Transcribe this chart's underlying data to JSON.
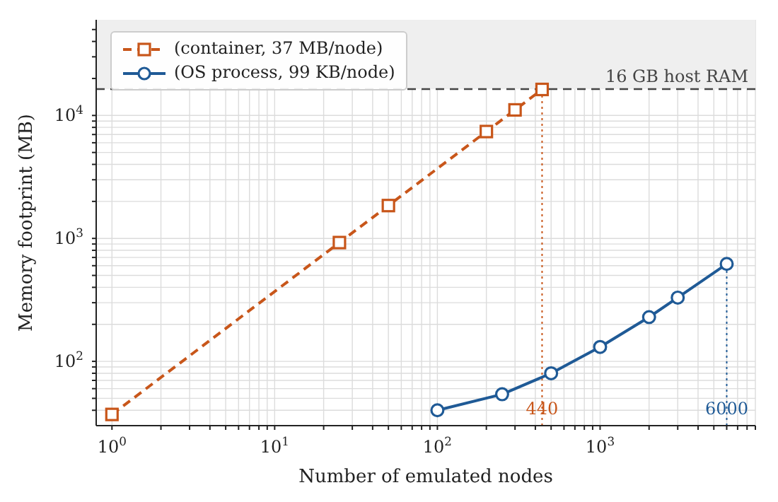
{
  "chart_data": {
    "type": "line",
    "xlabel": "Number of emulated nodes",
    "ylabel": "Memory footprint (MB)",
    "log": "xy",
    "grid": true,
    "legend": "top left",
    "xlim": [
      0.8,
      9000
    ],
    "ylim": [
      30,
      60000
    ],
    "xticks": [
      {
        "value": 1,
        "label": "10$^{0}$"
      },
      {
        "value": 2,
        "label": null
      },
      {
        "value": 3,
        "label": null
      },
      {
        "value": 4,
        "label": null
      },
      {
        "value": 5,
        "label": null
      },
      {
        "value": 6,
        "label": null
      },
      {
        "value": 7,
        "label": null
      },
      {
        "value": 8,
        "label": null
      },
      {
        "value": 9,
        "label": null
      },
      {
        "value": 10,
        "label": "10$^{1}$"
      },
      {
        "value": 20,
        "label": null
      },
      {
        "value": 30,
        "label": null
      },
      {
        "value": 40,
        "label": null
      },
      {
        "value": 50,
        "label": null
      },
      {
        "value": 60,
        "label": null
      },
      {
        "value": 70,
        "label": null
      },
      {
        "value": 80,
        "label": null
      },
      {
        "value": 90,
        "label": null
      },
      {
        "value": 100,
        "label": "10$^{2}$"
      },
      {
        "value": 200,
        "label": null
      },
      {
        "value": 300,
        "label": null
      },
      {
        "value": 400,
        "label": null
      },
      {
        "value": 500,
        "label": null
      },
      {
        "value": 600,
        "label": null
      },
      {
        "value": 700,
        "label": null
      },
      {
        "value": 800,
        "label": null
      },
      {
        "value": 900,
        "label": null
      },
      {
        "value": 1000,
        "label": "10$^{3}$"
      },
      {
        "value": 2000,
        "label": null
      },
      {
        "value": 3000,
        "label": null
      },
      {
        "value": 4000,
        "label": null
      },
      {
        "value": 5000,
        "label": null
      },
      {
        "value": 6000,
        "label": null
      },
      {
        "value": 7000,
        "label": null
      },
      {
        "value": 8000,
        "label": null
      },
      {
        "value": 9000,
        "label": null
      }
    ],
    "yticks": [
      {
        "value": 40,
        "label": null
      },
      {
        "value": 50,
        "label": null
      },
      {
        "value": 60,
        "label": null
      },
      {
        "value": 70,
        "label": null
      },
      {
        "value": 80,
        "label": null
      },
      {
        "value": 90,
        "label": null
      },
      {
        "value": 100,
        "label": "10$^{2}$"
      },
      {
        "value": 200,
        "label": null
      },
      {
        "value": 300,
        "label": null
      },
      {
        "value": 400,
        "label": null
      },
      {
        "value": 500,
        "label": null
      },
      {
        "value": 600,
        "label": null
      },
      {
        "value": 700,
        "label": null
      },
      {
        "value": 800,
        "label": null
      },
      {
        "value": 900,
        "label": null
      },
      {
        "value": 1000,
        "label": "10$^{3}$"
      },
      {
        "value": 2000,
        "label": null
      },
      {
        "value": 3000,
        "label": null
      },
      {
        "value": 4000,
        "label": null
      },
      {
        "value": 5000,
        "label": null
      },
      {
        "value": 6000,
        "label": null
      },
      {
        "value": 7000,
        "label": null
      },
      {
        "value": 8000,
        "label": null
      },
      {
        "value": 9000,
        "label": null
      },
      {
        "value": 10000,
        "label": "10$^{4}$"
      },
      {
        "value": 20000,
        "label": null
      },
      {
        "value": 30000,
        "label": null
      },
      {
        "value": 40000,
        "label": null
      },
      {
        "value": 50000,
        "label": null
      }
    ],
    "series": [
      {
        "name": "(container, 37 MB/node)",
        "color": "#c8561a",
        "marker": "square",
        "line_style": "dashed",
        "x": [
          1,
          25,
          50,
          200,
          300,
          440
        ],
        "values": [
          37,
          925,
          1850,
          7400,
          11100,
          16280
        ]
      },
      {
        "name": "(OS process, 99 KB/node)",
        "color": "#1f5a96",
        "marker": "circle",
        "line_style": "solid",
        "x": [
          100,
          250,
          500,
          1000,
          2000,
          3000,
          6000
        ],
        "values": [
          40,
          54,
          80,
          131,
          229,
          330,
          620
        ]
      }
    ],
    "bands": [
      {
        "axis": "y",
        "from": 16384,
        "to": 60000,
        "color": "#efefef"
      }
    ],
    "ref_lines": [
      {
        "axis": "y",
        "value": 16384,
        "label": "16 GB host RAM",
        "color": "#444444",
        "line_style": "dashed"
      },
      {
        "axis": "x",
        "value": 440,
        "label": "440",
        "color": "#c8561a",
        "line_style": "dotted"
      },
      {
        "axis": "x",
        "value": 6000,
        "label": "6000",
        "color": "#1f5a96",
        "line_style": "dotted"
      }
    ]
  }
}
